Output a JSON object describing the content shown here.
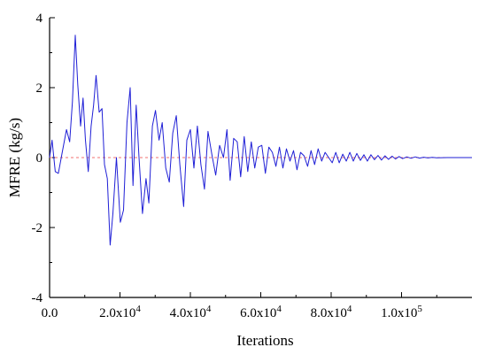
{
  "chart_data": {
    "type": "line",
    "title": "",
    "xlabel": "Iterations",
    "ylabel": "MFRE (kg/s)",
    "xlim": [
      0,
      120000
    ],
    "ylim": [
      -4,
      4
    ],
    "x_ticks": [
      {
        "value": 0,
        "label": "0.0",
        "sup": ""
      },
      {
        "value": 20000,
        "label": "2.0x10",
        "sup": "4"
      },
      {
        "value": 40000,
        "label": "4.0x10",
        "sup": "4"
      },
      {
        "value": 60000,
        "label": "6.0x10",
        "sup": "4"
      },
      {
        "value": 80000,
        "label": "8.0x10",
        "sup": "4"
      },
      {
        "value": 100000,
        "label": "1.0x10",
        "sup": "5"
      }
    ],
    "y_ticks": [
      {
        "value": 4,
        "label": "4"
      },
      {
        "value": 2,
        "label": "2"
      },
      {
        "value": 0,
        "label": "0"
      },
      {
        "value": -2,
        "label": "-2"
      },
      {
        "value": -4,
        "label": "-4"
      }
    ],
    "reference_line": {
      "y": 0,
      "style": "dashed",
      "color": "#f07070"
    },
    "grid": false,
    "series": [
      {
        "color": "#1f1fd6",
        "x": [
          0,
          700,
          1600,
          2500,
          3500,
          4800,
          5700,
          6500,
          7300,
          8000,
          8800,
          9500,
          10200,
          11000,
          11800,
          12500,
          13200,
          14100,
          14900,
          15600,
          16400,
          17200,
          18000,
          19000,
          20100,
          21000,
          22000,
          22900,
          23700,
          24600,
          25400,
          26400,
          27400,
          28200,
          29200,
          30100,
          31100,
          32000,
          33000,
          34000,
          35000,
          36000,
          37000,
          38100,
          39000,
          40000,
          41000,
          42000,
          43000,
          44000,
          45000,
          46100,
          47200,
          48300,
          49400,
          50400,
          51300,
          52300,
          53300,
          54300,
          55300,
          56300,
          57300,
          58300,
          59300,
          60300,
          61300,
          62300,
          63300,
          64300,
          65300,
          66300,
          67300,
          68300,
          69300,
          70300,
          71300,
          72300,
          73300,
          74300,
          75300,
          76300,
          77300,
          78300,
          79300,
          80300,
          81300,
          82300,
          83300,
          84300,
          85300,
          86300,
          87300,
          88300,
          89300,
          90300,
          91300,
          92300,
          93300,
          94300,
          95300,
          96300,
          97300,
          98300,
          99300,
          100300,
          101500,
          102700,
          103900,
          105100,
          106300,
          107500,
          108700,
          110000,
          113000,
          116000,
          120000
        ],
        "y": [
          0.0,
          0.5,
          -0.4,
          -0.45,
          0.1,
          0.8,
          0.45,
          1.6,
          3.5,
          2.1,
          0.9,
          1.7,
          0.5,
          -0.4,
          0.9,
          1.5,
          2.35,
          1.3,
          1.4,
          -0.2,
          -0.6,
          -2.5,
          -1.6,
          0.0,
          -1.85,
          -1.5,
          1.0,
          2.0,
          -0.8,
          1.5,
          0.0,
          -1.6,
          -0.6,
          -1.3,
          0.9,
          1.35,
          0.5,
          1.0,
          -0.3,
          -0.7,
          0.7,
          1.2,
          -0.2,
          -1.4,
          0.5,
          0.8,
          -0.3,
          0.9,
          -0.2,
          -0.9,
          0.75,
          0.1,
          -0.5,
          0.35,
          0.0,
          0.8,
          -0.65,
          0.55,
          0.45,
          -0.55,
          0.6,
          -0.4,
          0.45,
          -0.3,
          0.3,
          0.35,
          -0.45,
          0.3,
          0.15,
          -0.25,
          0.3,
          -0.3,
          0.25,
          -0.1,
          0.2,
          -0.35,
          0.15,
          0.05,
          -0.25,
          0.2,
          -0.2,
          0.25,
          -0.1,
          0.15,
          0.0,
          -0.15,
          0.15,
          -0.15,
          0.1,
          -0.1,
          0.15,
          -0.1,
          0.12,
          -0.08,
          0.08,
          -0.1,
          0.08,
          -0.06,
          0.06,
          -0.07,
          0.05,
          -0.05,
          0.04,
          -0.04,
          0.03,
          -0.03,
          0.02,
          -0.02,
          0.02,
          -0.015,
          0.01,
          -0.01,
          0.008,
          -0.005,
          0.0,
          0.0,
          0.0
        ]
      }
    ]
  }
}
